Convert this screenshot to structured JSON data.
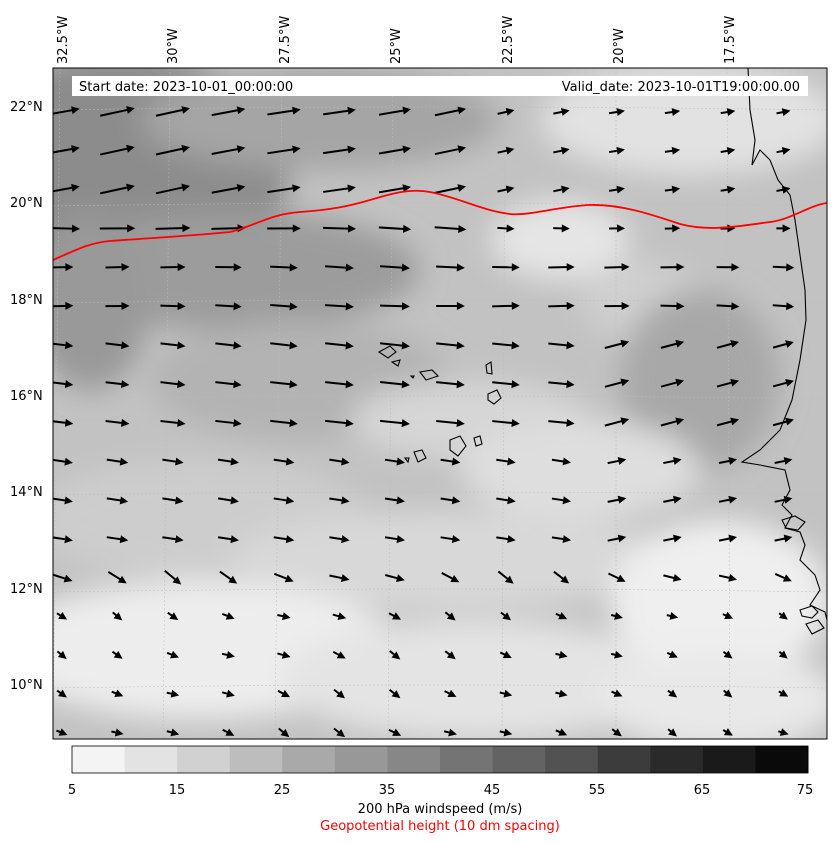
{
  "map": {
    "top_longitude_labels": [
      "32.5°W",
      "30°W",
      "27.5°W",
      "25°W",
      "22.5°W",
      "20°W",
      "17.5°W"
    ],
    "left_latitude_labels": [
      "22°N",
      "20°N",
      "18°N",
      "16°N",
      "14°N",
      "12°N",
      "10°N"
    ],
    "start_label": "Start date: 2023-10-01_00:00:00",
    "valid_label": "Valid_date: 2023-10-01T19:00:00.00",
    "contour_color": "#ff0000",
    "vector_color": "#000000"
  },
  "colorbar": {
    "tick_labels": [
      "5",
      "15",
      "25",
      "35",
      "45",
      "55",
      "65",
      "75"
    ],
    "colors": [
      "#f4f4f4",
      "#e3e3e3",
      "#d1d1d1",
      "#bdbdbd",
      "#a9a9a9",
      "#989898",
      "#878787",
      "#747474",
      "#636363",
      "#525252",
      "#3c3c3c",
      "#2a2a2a",
      "#1a1a1a",
      "#0a0a0a"
    ],
    "title": "200 hPa windspeed (m/s)",
    "subtitle": "Geopotential height (10 dm spacing)",
    "subtitle_color": "#ff0000"
  }
}
